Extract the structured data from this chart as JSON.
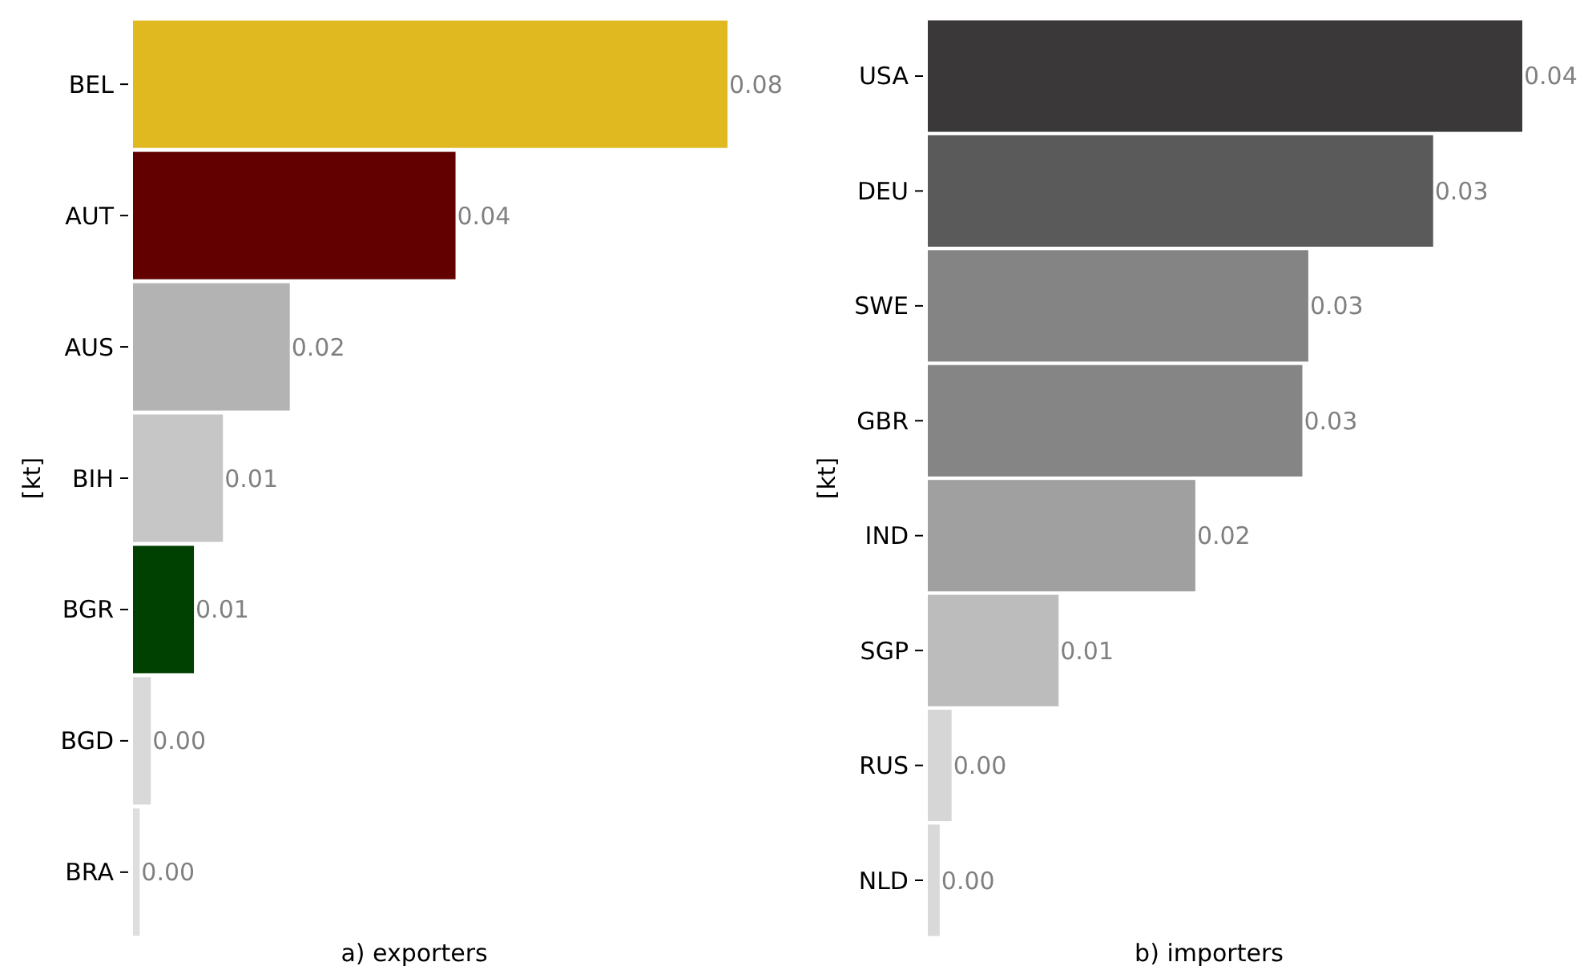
{
  "chart_data": [
    {
      "type": "bar",
      "orientation": "horizontal",
      "xlabel": "a) exporters",
      "ylabel": "[kt]",
      "categories": [
        "BEL",
        "AUT",
        "AUS",
        "BIH",
        "BGR",
        "BGD",
        "BRA"
      ],
      "values": [
        0.08,
        0.0434,
        0.0211,
        0.0121,
        0.0082,
        0.0024,
        0.0009
      ],
      "colors": [
        "#e0b820",
        "#620000",
        "#b3b3b3",
        "#c6c6c6",
        "#004000",
        "#d9d9d9",
        "#dedede"
      ],
      "value_labels": [
        "0.08",
        "0.04",
        "0.02",
        "0.01",
        "0.01",
        "0.00",
        "0.00"
      ]
    },
    {
      "type": "bar",
      "orientation": "horizontal",
      "xlabel": "b) importers",
      "ylabel": "[kt]",
      "categories": [
        "USA",
        "DEU",
        "SWE",
        "GBR",
        "IND",
        "SGP",
        "RUS",
        "NLD"
      ],
      "values": [
        0.04,
        0.034,
        0.0256,
        0.0252,
        0.018,
        0.0088,
        0.0016,
        0.0008
      ],
      "colors": [
        "#3a3839",
        "#5a5a5a",
        "#848484",
        "#858585",
        "#a0a0a0",
        "#bcbcbc",
        "#d6d6d6",
        "#d9d9d9"
      ],
      "value_labels": [
        "0.04",
        "0.03",
        "0.03",
        "0.03",
        "0.02",
        "0.01",
        "0.00",
        "0.00"
      ]
    }
  ]
}
